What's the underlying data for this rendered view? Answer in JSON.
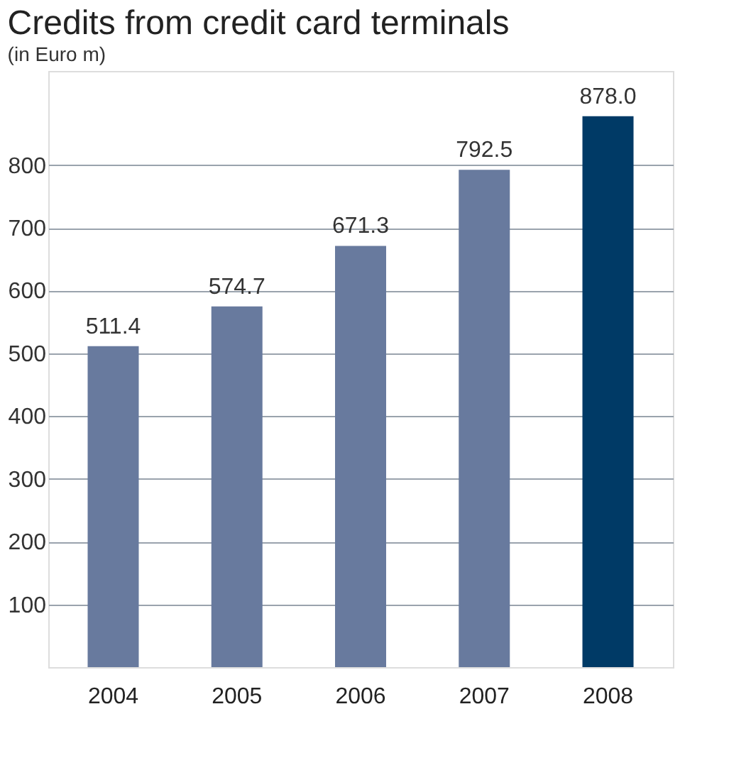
{
  "chart_data": {
    "type": "bar",
    "title": "Credits from credit card terminals",
    "subtitle": "(in Euro m)",
    "categories": [
      "2004",
      "2005",
      "2006",
      "2007",
      "2008"
    ],
    "values": [
      511.4,
      574.7,
      671.3,
      792.5,
      878.0
    ],
    "colors": [
      "#687a9e",
      "#687a9e",
      "#687a9e",
      "#687a9e",
      "#003a66"
    ],
    "value_labels": [
      "511.4",
      "574.7",
      "671.3",
      "792.5",
      "878.0"
    ],
    "ylim": [
      0,
      950
    ],
    "yticks": [
      100,
      200,
      300,
      400,
      500,
      600,
      700,
      800
    ],
    "grid": "y"
  }
}
